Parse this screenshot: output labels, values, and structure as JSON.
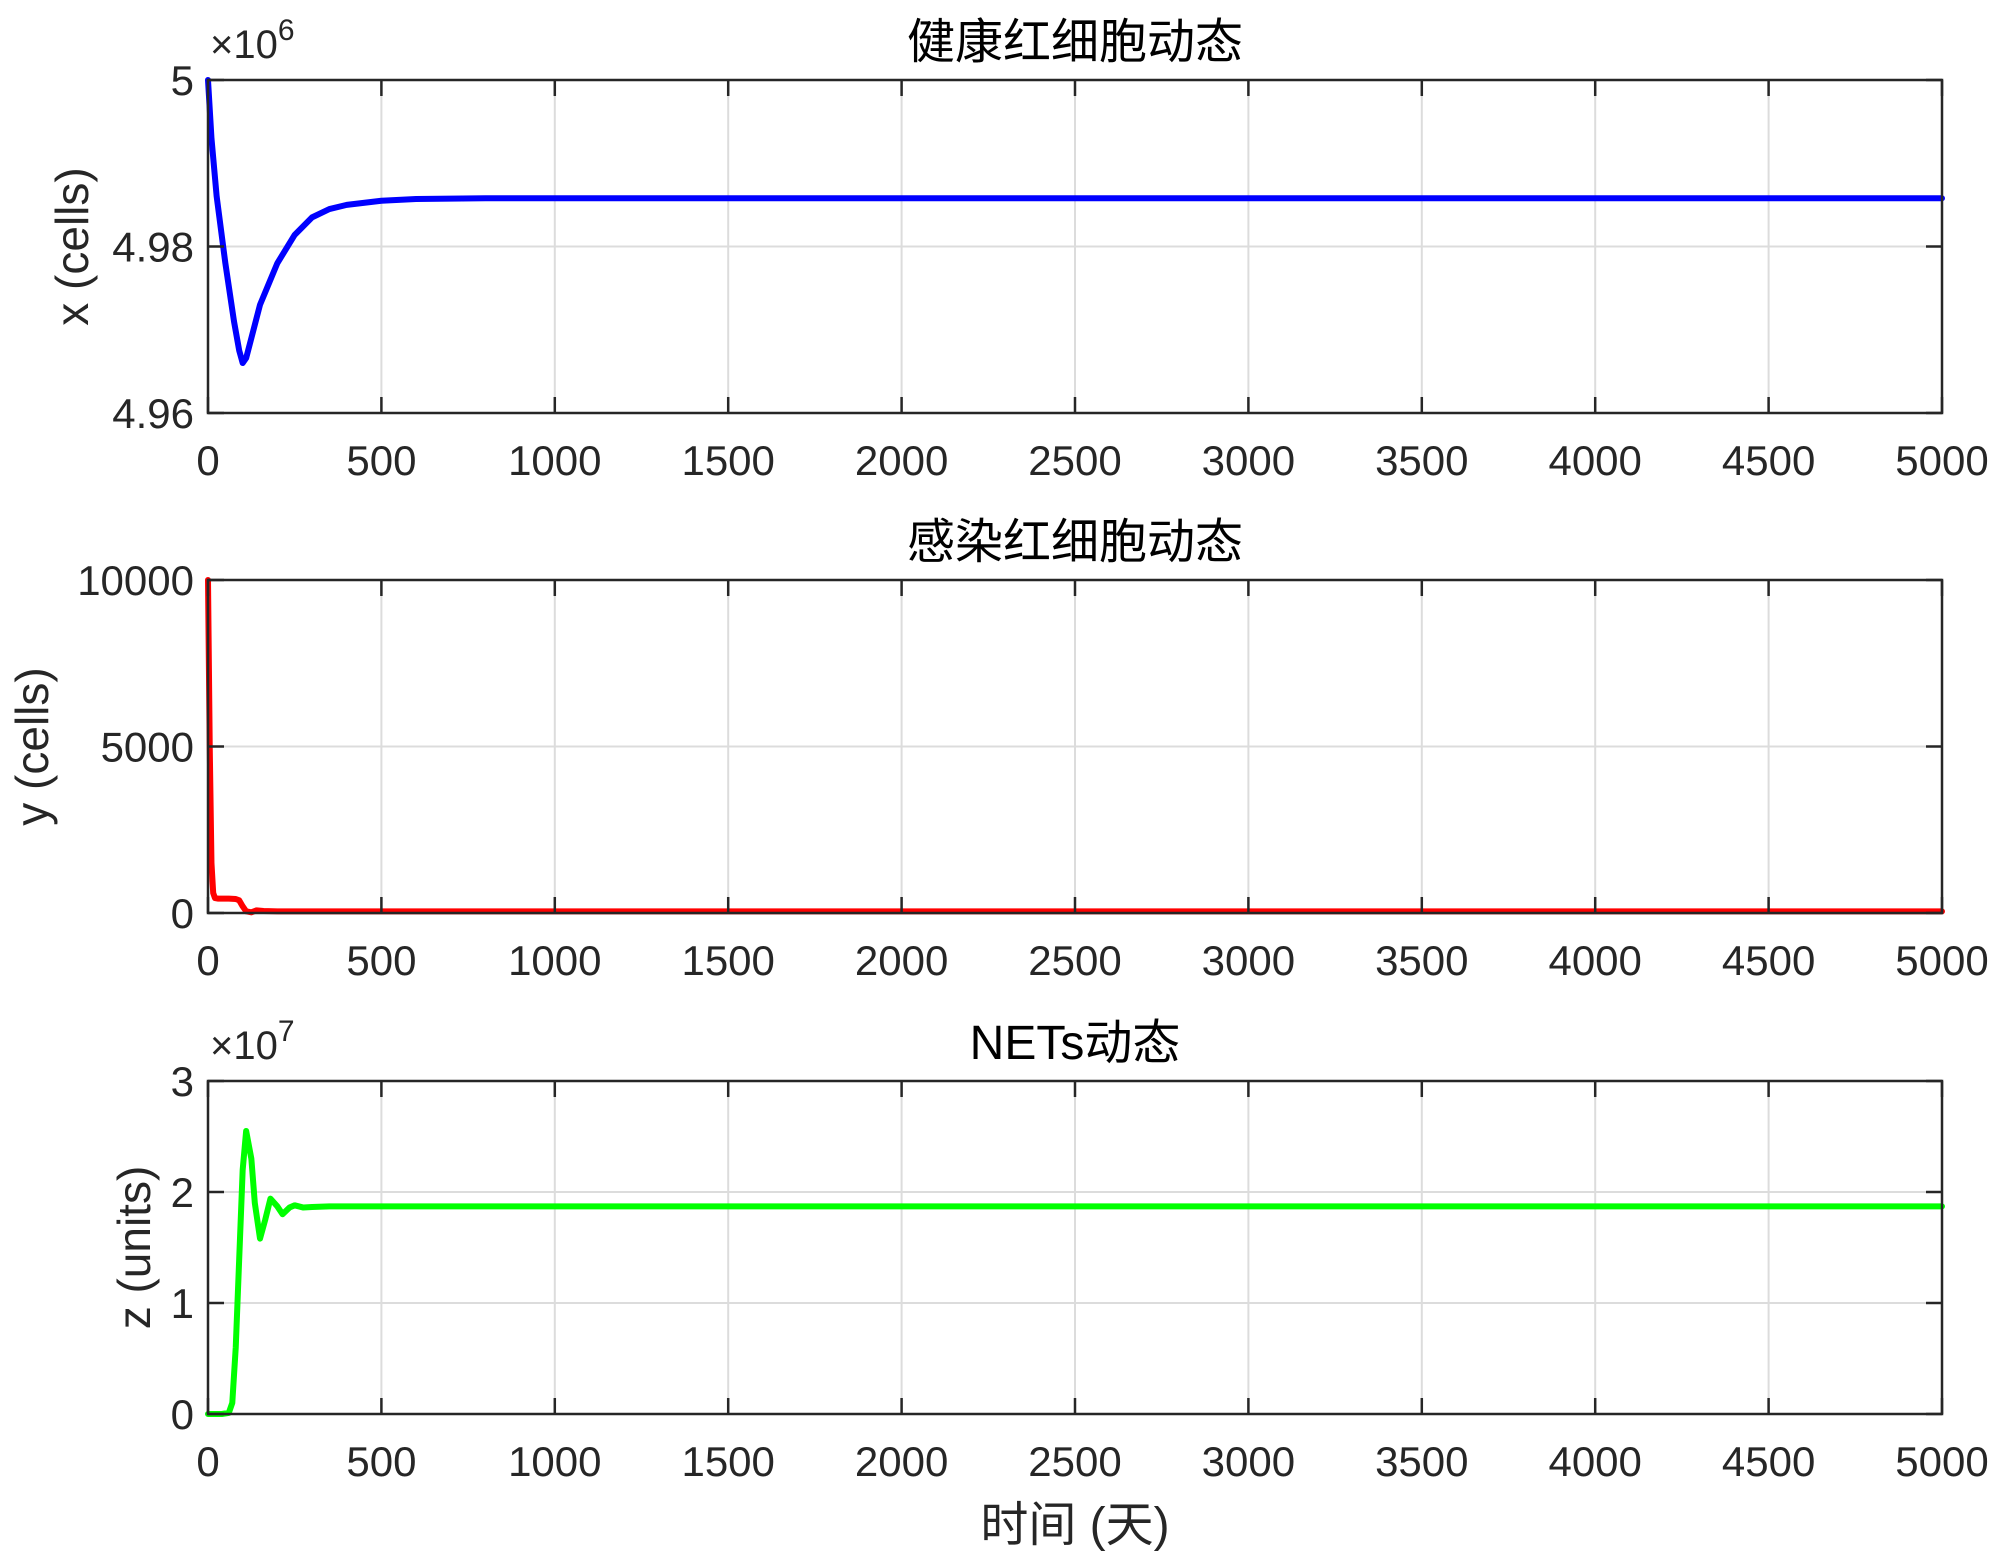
{
  "chart_data": [
    {
      "type": "line",
      "title": "健康红细胞动态",
      "ylabel": "x (cells)",
      "xlabel": "",
      "xlim": [
        0,
        5000
      ],
      "ylim": [
        4960000,
        5000000
      ],
      "xticks": [
        0,
        500,
        1000,
        1500,
        2000,
        2500,
        3000,
        3500,
        4000,
        4500,
        5000
      ],
      "xtick_labels": [
        "0",
        "500",
        "1000",
        "1500",
        "2000",
        "2500",
        "3000",
        "3500",
        "4000",
        "4500",
        "5000"
      ],
      "yticks": [
        4960000,
        4980000,
        5000000
      ],
      "ytick_labels": [
        "4.96",
        "4.98",
        "5"
      ],
      "exponent_label": "×10",
      "exponent_power": "6",
      "grid": true,
      "color": "#0000ff",
      "series": [
        {
          "x": [
            0,
            10,
            25,
            50,
            75,
            90,
            100,
            110,
            125,
            150,
            175,
            200,
            250,
            300,
            350,
            400,
            500,
            600,
            800,
            1000,
            2000,
            3000,
            4000,
            5000
          ],
          "y": [
            5000000,
            4993000,
            4986000,
            4978000,
            4971000,
            4967500,
            4966000,
            4966600,
            4969000,
            4973000,
            4975500,
            4978000,
            4981400,
            4983500,
            4984500,
            4985000,
            4985500,
            4985700,
            4985800,
            4985800,
            4985800,
            4985800,
            4985800,
            4985800
          ]
        }
      ]
    },
    {
      "type": "line",
      "title": "感染红细胞动态",
      "ylabel": "y (cells)",
      "xlabel": "",
      "xlim": [
        0,
        5000
      ],
      "ylim": [
        0,
        10000
      ],
      "xticks": [
        0,
        500,
        1000,
        1500,
        2000,
        2500,
        3000,
        3500,
        4000,
        4500,
        5000
      ],
      "xtick_labels": [
        "0",
        "500",
        "1000",
        "1500",
        "2000",
        "2500",
        "3000",
        "3500",
        "4000",
        "4500",
        "5000"
      ],
      "yticks": [
        0,
        5000,
        10000
      ],
      "ytick_labels": [
        "0",
        "5000",
        "10000"
      ],
      "grid": true,
      "color": "#ff0000",
      "series": [
        {
          "x": [
            0,
            5,
            10,
            15,
            20,
            30,
            60,
            80,
            90,
            100,
            110,
            125,
            140,
            160,
            200,
            300,
            500,
            1000,
            2000,
            3000,
            4000,
            5000
          ],
          "y": [
            10000,
            5000,
            1500,
            600,
            450,
            430,
            430,
            420,
            380,
            200,
            50,
            20,
            80,
            60,
            50,
            50,
            50,
            50,
            50,
            50,
            50,
            50
          ]
        }
      ]
    },
    {
      "type": "line",
      "title": "NETs动态",
      "ylabel": "z (units)",
      "xlabel": "时间 (天)",
      "xlim": [
        0,
        5000
      ],
      "ylim": [
        0,
        30000000
      ],
      "xticks": [
        0,
        500,
        1000,
        1500,
        2000,
        2500,
        3000,
        3500,
        4000,
        4500,
        5000
      ],
      "xtick_labels": [
        "0",
        "500",
        "1000",
        "1500",
        "2000",
        "2500",
        "3000",
        "3500",
        "4000",
        "4500",
        "5000"
      ],
      "yticks": [
        0,
        10000000,
        20000000,
        30000000
      ],
      "ytick_labels": [
        "0",
        "1",
        "2",
        "3"
      ],
      "exponent_label": "×10",
      "exponent_power": "7",
      "grid": true,
      "color": "#00ff00",
      "series": [
        {
          "x": [
            0,
            40,
            60,
            70,
            80,
            90,
            100,
            110,
            125,
            135,
            150,
            165,
            180,
            200,
            215,
            235,
            250,
            275,
            300,
            350,
            500,
            1000,
            2000,
            3000,
            4000,
            5000
          ],
          "y": [
            0,
            0,
            100000,
            1000000,
            6000000,
            14000000,
            22000000,
            25500000,
            23000000,
            19000000,
            15800000,
            17500000,
            19400000,
            18700000,
            18000000,
            18600000,
            18800000,
            18600000,
            18650000,
            18700000,
            18700000,
            18700000,
            18700000,
            18700000,
            18700000,
            18700000
          ]
        }
      ]
    }
  ]
}
